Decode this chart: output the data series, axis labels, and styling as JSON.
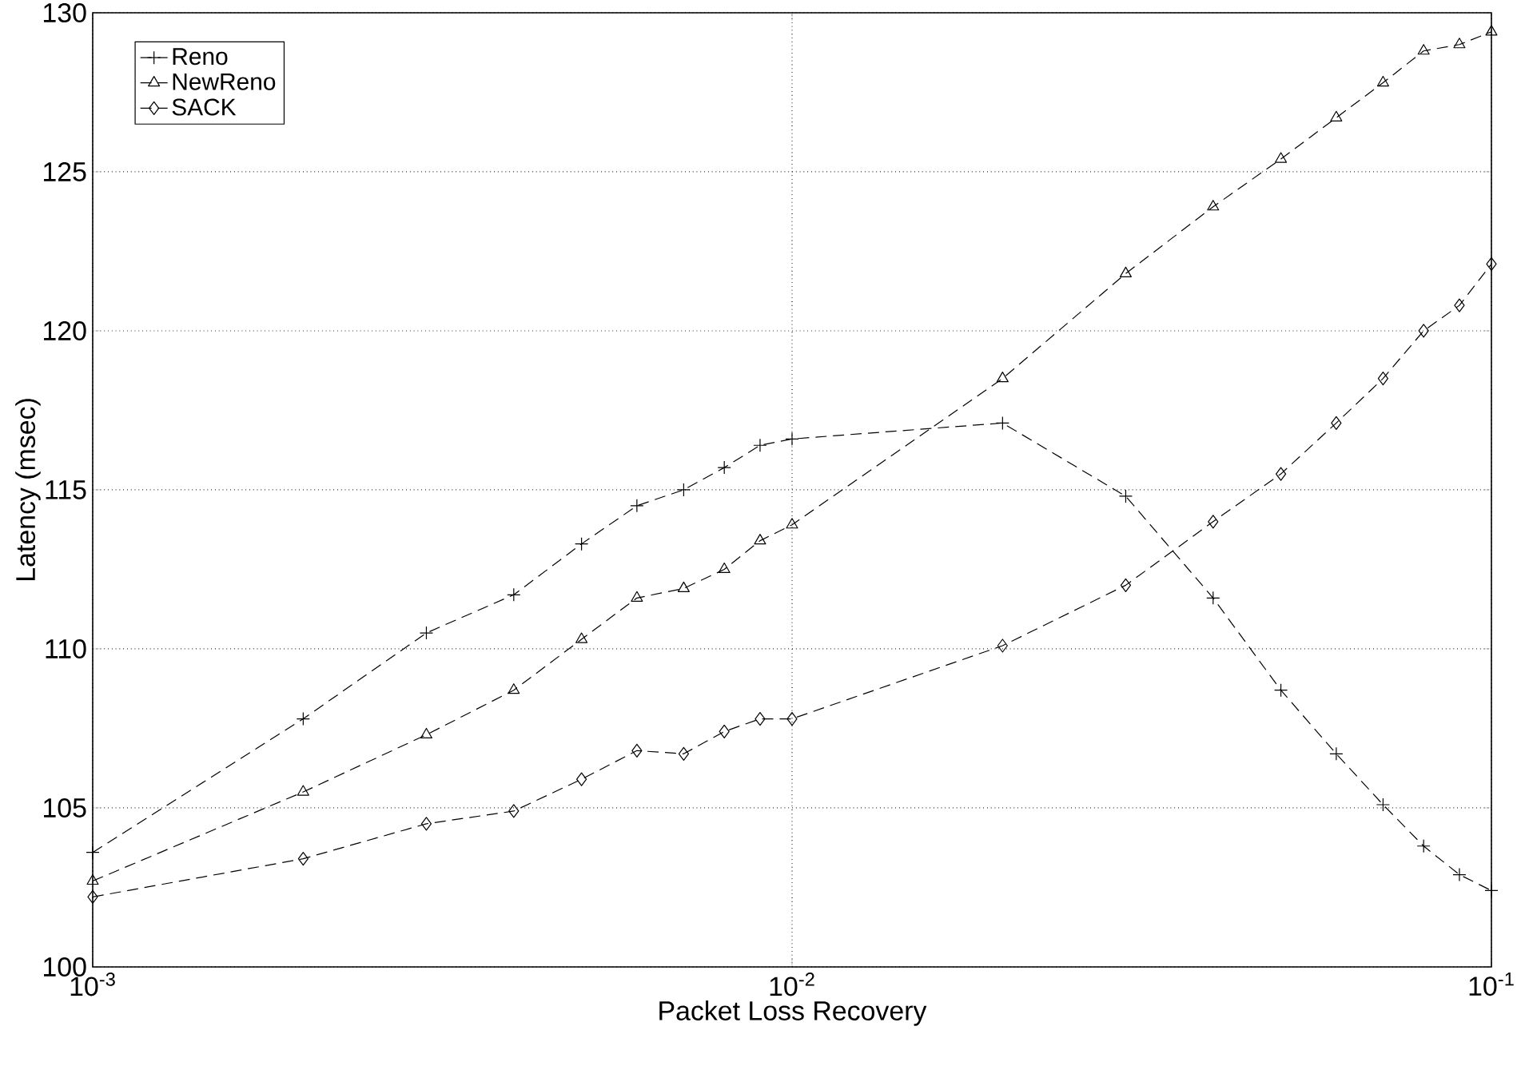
{
  "chart_data": {
    "type": "line",
    "xlabel": "Packet Loss Recovery",
    "ylabel": "Latency (msec)",
    "log": "x",
    "grid": true,
    "legend": "top left",
    "xlim": [
      0.001,
      0.1
    ],
    "ylim": [
      100,
      130
    ],
    "xticks": [
      {
        "value": 0.001,
        "label": "10$^{-3}$"
      },
      {
        "value": 0.01,
        "label": "10$^{-2}$"
      },
      {
        "value": 0.1,
        "label": "10$^{-1}$"
      }
    ],
    "yticks": [
      100,
      105,
      110,
      115,
      120,
      125,
      130
    ],
    "x": [
      0.001,
      0.002,
      0.003,
      0.004,
      0.005,
      0.006,
      0.007,
      0.008,
      0.009,
      0.01,
      0.02,
      0.03,
      0.04,
      0.05,
      0.06,
      0.07,
      0.08,
      0.09,
      0.1
    ],
    "series": [
      {
        "name": "Reno",
        "color": "#000000",
        "marker": "cross",
        "line_style": "dashed",
        "values": [
          103.6,
          107.8,
          110.5,
          111.7,
          113.3,
          114.5,
          115.0,
          115.7,
          116.4,
          116.6,
          117.1,
          114.8,
          111.6,
          108.7,
          106.7,
          105.1,
          103.8,
          102.9,
          102.4
        ]
      },
      {
        "name": "NewReno",
        "color": "#000000",
        "marker": "triangle",
        "line_style": "dashed",
        "values": [
          102.7,
          105.5,
          107.3,
          108.7,
          110.3,
          111.6,
          111.9,
          112.5,
          113.4,
          113.9,
          118.5,
          121.8,
          123.9,
          125.4,
          126.7,
          127.8,
          128.8,
          129.0,
          129.4
        ]
      },
      {
        "name": "SACK",
        "color": "#000000",
        "marker": "diamond",
        "line_style": "dashed",
        "values": [
          102.2,
          103.4,
          104.5,
          104.9,
          105.9,
          106.8,
          106.7,
          107.4,
          107.8,
          107.8,
          110.1,
          112.0,
          114.0,
          115.5,
          117.1,
          118.5,
          120.0,
          120.8,
          122.1
        ]
      }
    ]
  }
}
